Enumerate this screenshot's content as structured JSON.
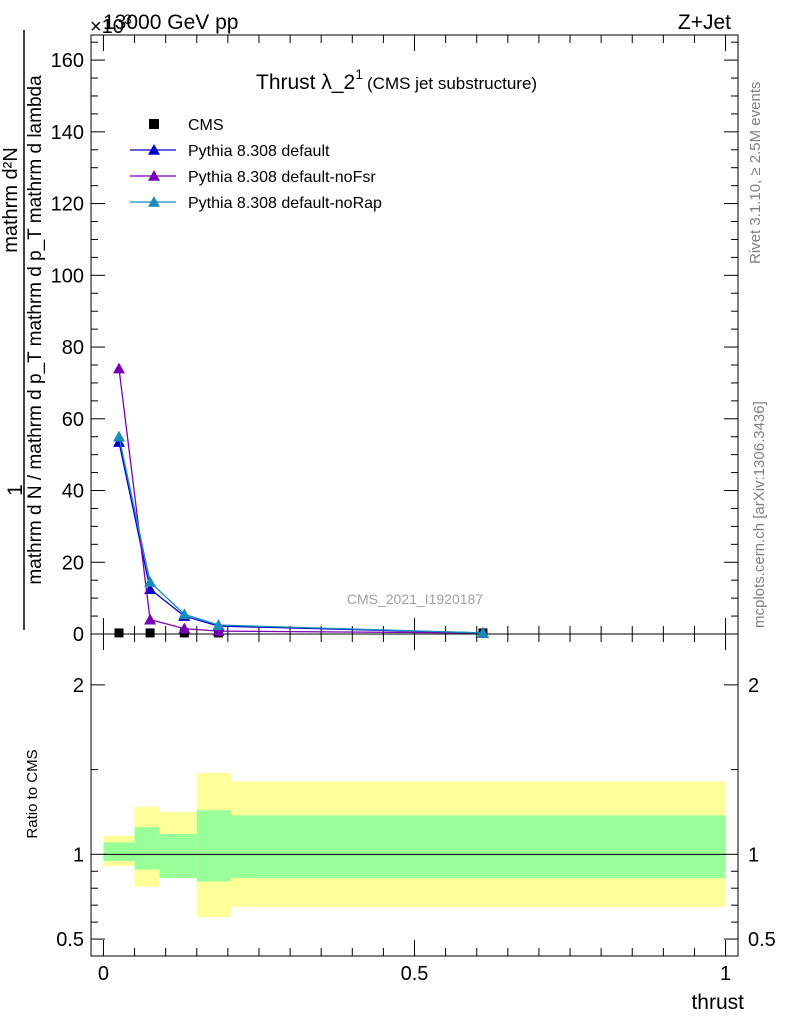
{
  "header": {
    "left": "13000 GeV pp",
    "right": "Z+Jet",
    "exponent": "×10",
    "exponent_power": "3"
  },
  "side_labels": {
    "rivet": "Rivet 3.1.10, ≥ 2.5M events",
    "mcplots": "mcplots.cern.ch [arXiv:1306.3436]"
  },
  "watermark": "CMS_2021_I1920187",
  "title": {
    "main": "Thrust λ_2",
    "superscript": "1",
    "sub": "(CMS jet substructure)"
  },
  "chart_data": [
    {
      "type": "line",
      "panel": "main",
      "xlabel": "thrust",
      "ylabel_top": "1",
      "ylabel_fraction": {
        "numerator": "mathrm d²N",
        "denominator": "mathrm d N / mathrm d p_T mathrm d p_T mathrm d lambda"
      },
      "xlim": [
        -0.02,
        1.02
      ],
      "ylim": [
        0,
        167
      ],
      "y_scale_factor": 1000,
      "x_ticks": [
        "0",
        "0.5",
        "1"
      ],
      "y_ticks": [
        "0",
        "20",
        "40",
        "60",
        "80",
        "100",
        "120",
        "140",
        "160"
      ],
      "legend_position": "top-left",
      "series": [
        {
          "name": "CMS",
          "marker": "square",
          "color": "#000000",
          "x": [
            0.025,
            0.075,
            0.13,
            0.185,
            0.61
          ],
          "y": [
            0.3,
            0.3,
            0.3,
            0.3,
            0.3
          ]
        },
        {
          "name": "Pythia 8.308 default",
          "marker": "triangle",
          "color": "#0000cc",
          "x": [
            0.025,
            0.075,
            0.13,
            0.185,
            0.61
          ],
          "y": [
            53.5,
            12.5,
            5.0,
            2.2,
            0.3
          ]
        },
        {
          "name": "Pythia 8.308 default-noFsr",
          "marker": "triangle",
          "color": "#7a00b5",
          "x": [
            0.025,
            0.075,
            0.13,
            0.185,
            0.61
          ],
          "y": [
            74.0,
            4.0,
            1.5,
            0.8,
            0.3
          ]
        },
        {
          "name": "Pythia 8.308 default-noRap",
          "marker": "triangle",
          "color": "#1a8cb8",
          "x": [
            0.025,
            0.075,
            0.13,
            0.185,
            0.61
          ],
          "y": [
            55.0,
            14.5,
            5.5,
            2.5,
            0.3
          ]
        }
      ]
    },
    {
      "type": "area",
      "panel": "ratio",
      "xlabel": "thrust",
      "ylabel": "Ratio to CMS",
      "xlim": [
        -0.02,
        1.02
      ],
      "ylim": [
        0.4,
        2.3
      ],
      "y_ticks": [
        "0.5",
        "1",
        "2"
      ],
      "reference_line": 1,
      "bins": [
        {
          "x": [
            0.0,
            0.05
          ],
          "inner": [
            0.96,
            1.07
          ],
          "outer": [
            0.93,
            1.11
          ]
        },
        {
          "x": [
            0.05,
            0.09
          ],
          "inner": [
            0.91,
            1.16
          ],
          "outer": [
            0.81,
            1.28
          ]
        },
        {
          "x": [
            0.09,
            0.15
          ],
          "inner": [
            0.86,
            1.12
          ],
          "outer": [
            0.86,
            1.25
          ]
        },
        {
          "x": [
            0.15,
            0.205
          ],
          "inner": [
            0.84,
            1.26
          ],
          "outer": [
            0.63,
            1.48
          ]
        },
        {
          "x": [
            0.205,
            1.0
          ],
          "inner": [
            0.86,
            1.23
          ],
          "outer": [
            0.69,
            1.43
          ]
        }
      ]
    }
  ]
}
